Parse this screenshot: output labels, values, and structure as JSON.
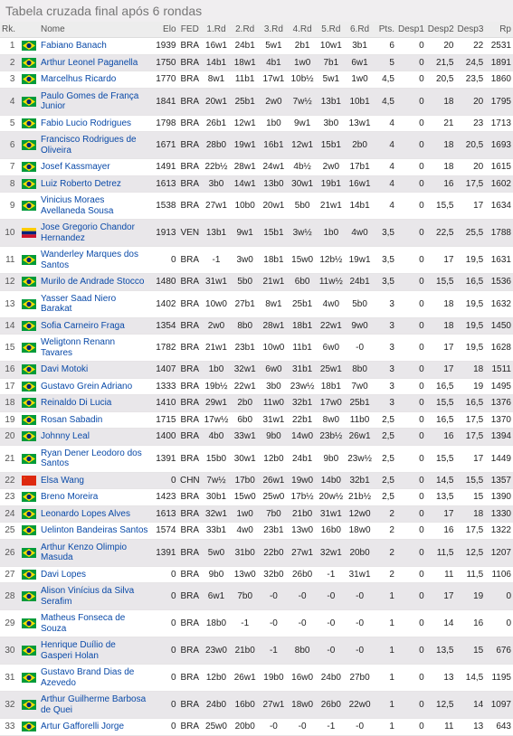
{
  "title": "Tabela cruzada final após 6 rondas",
  "headers": {
    "rk": "Rk.",
    "name": "Nome",
    "elo": "Elo",
    "fed": "FED",
    "r1": "1.Rd",
    "r2": "2.Rd",
    "r3": "3.Rd",
    "r4": "4.Rd",
    "r5": "5.Rd",
    "r6": "6.Rd",
    "pts": "Pts.",
    "d1": "Desp1",
    "d2": "Desp2",
    "d3": "Desp3",
    "rp": "Rp"
  },
  "rows": [
    {
      "rk": 1,
      "flag": "BRA",
      "name": "Fabiano Banach",
      "elo": 1939,
      "fed": "BRA",
      "r": [
        "16w1",
        "24b1",
        "5w1",
        "2b1",
        "10w1",
        "3b1"
      ],
      "pts": "6",
      "d1": 0,
      "d2": "20",
      "d3": "22",
      "rp": 2531
    },
    {
      "rk": 2,
      "flag": "BRA",
      "name": "Arthur Leonel Paganella",
      "elo": 1750,
      "fed": "BRA",
      "r": [
        "14b1",
        "18w1",
        "4b1",
        "1w0",
        "7b1",
        "6w1"
      ],
      "pts": "5",
      "d1": 0,
      "d2": "21,5",
      "d3": "24,5",
      "rp": 1891
    },
    {
      "rk": 3,
      "flag": "BRA",
      "name": "Marcelhus Ricardo",
      "elo": 1770,
      "fed": "BRA",
      "r": [
        "8w1",
        "11b1",
        "17w1",
        "10b½",
        "5w1",
        "1w0"
      ],
      "pts": "4,5",
      "d1": 0,
      "d2": "20,5",
      "d3": "23,5",
      "rp": 1860
    },
    {
      "rk": 4,
      "flag": "BRA",
      "name": "Paulo Gomes de França Junior",
      "elo": 1841,
      "fed": "BRA",
      "r": [
        "20w1",
        "25b1",
        "2w0",
        "7w½",
        "13b1",
        "10b1"
      ],
      "pts": "4,5",
      "d1": 0,
      "d2": "18",
      "d3": "20",
      "rp": 1795
    },
    {
      "rk": 5,
      "flag": "BRA",
      "name": "Fabio Lucio Rodrigues",
      "elo": 1798,
      "fed": "BRA",
      "r": [
        "26b1",
        "12w1",
        "1b0",
        "9w1",
        "3b0",
        "13w1"
      ],
      "pts": "4",
      "d1": 0,
      "d2": "21",
      "d3": "23",
      "rp": 1713
    },
    {
      "rk": 6,
      "flag": "BRA",
      "name": "Francisco Rodrigues de Oliveira",
      "elo": 1671,
      "fed": "BRA",
      "r": [
        "28b0",
        "19w1",
        "16b1",
        "12w1",
        "15b1",
        "2b0"
      ],
      "pts": "4",
      "d1": 0,
      "d2": "18",
      "d3": "20,5",
      "rp": 1693
    },
    {
      "rk": 7,
      "flag": "BRA",
      "name": "Josef Kassmayer",
      "elo": 1491,
      "fed": "BRA",
      "r": [
        "22b½",
        "28w1",
        "24w1",
        "4b½",
        "2w0",
        "17b1"
      ],
      "pts": "4",
      "d1": 0,
      "d2": "18",
      "d3": "20",
      "rp": 1615
    },
    {
      "rk": 8,
      "flag": "BRA",
      "name": "Luiz Roberto Detrez",
      "elo": 1613,
      "fed": "BRA",
      "r": [
        "3b0",
        "14w1",
        "13b0",
        "30w1",
        "19b1",
        "16w1"
      ],
      "pts": "4",
      "d1": 0,
      "d2": "16",
      "d3": "17,5",
      "rp": 1602
    },
    {
      "rk": 9,
      "flag": "BRA",
      "name": "Vinicius Moraes Avellaneda Sousa",
      "elo": 1538,
      "fed": "BRA",
      "r": [
        "27w1",
        "10b0",
        "20w1",
        "5b0",
        "21w1",
        "14b1"
      ],
      "pts": "4",
      "d1": 0,
      "d2": "15,5",
      "d3": "17",
      "rp": 1634
    },
    {
      "rk": 10,
      "flag": "VEN",
      "name": "Jose Gregorio Chandor Hernandez",
      "elo": 1913,
      "fed": "VEN",
      "r": [
        "13b1",
        "9w1",
        "15b1",
        "3w½",
        "1b0",
        "4w0"
      ],
      "pts": "3,5",
      "d1": 0,
      "d2": "22,5",
      "d3": "25,5",
      "rp": 1788
    },
    {
      "rk": 11,
      "flag": "BRA",
      "name": "Wanderley Marques dos Santos",
      "elo": 0,
      "fed": "BRA",
      "r": [
        "-1",
        "3w0",
        "18b1",
        "15w0",
        "12b½",
        "19w1"
      ],
      "pts": "3,5",
      "d1": 0,
      "d2": "17",
      "d3": "19,5",
      "rp": 1631
    },
    {
      "rk": 12,
      "flag": "BRA",
      "name": "Murilo de Andrade Stocco",
      "elo": 1480,
      "fed": "BRA",
      "r": [
        "31w1",
        "5b0",
        "21w1",
        "6b0",
        "11w½",
        "24b1"
      ],
      "pts": "3,5",
      "d1": 0,
      "d2": "15,5",
      "d3": "16,5",
      "rp": 1536
    },
    {
      "rk": 13,
      "flag": "BRA",
      "name": "Yasser Saad Niero Barakat",
      "elo": 1402,
      "fed": "BRA",
      "r": [
        "10w0",
        "27b1",
        "8w1",
        "25b1",
        "4w0",
        "5b0"
      ],
      "pts": "3",
      "d1": 0,
      "d2": "18",
      "d3": "19,5",
      "rp": 1632
    },
    {
      "rk": 14,
      "flag": "BRA",
      "name": "Sofia Carneiro Fraga",
      "elo": 1354,
      "fed": "BRA",
      "r": [
        "2w0",
        "8b0",
        "28w1",
        "18b1",
        "22w1",
        "9w0"
      ],
      "pts": "3",
      "d1": 0,
      "d2": "18",
      "d3": "19,5",
      "rp": 1450
    },
    {
      "rk": 15,
      "flag": "BRA",
      "name": "Weligtonn Renann Tavares",
      "elo": 1782,
      "fed": "BRA",
      "r": [
        "21w1",
        "23b1",
        "10w0",
        "11b1",
        "6w0",
        "-0"
      ],
      "pts": "3",
      "d1": 0,
      "d2": "17",
      "d3": "19,5",
      "rp": 1628
    },
    {
      "rk": 16,
      "flag": "BRA",
      "name": "Davi Motoki",
      "elo": 1407,
      "fed": "BRA",
      "r": [
        "1b0",
        "32w1",
        "6w0",
        "31b1",
        "25w1",
        "8b0"
      ],
      "pts": "3",
      "d1": 0,
      "d2": "17",
      "d3": "18",
      "rp": 1511
    },
    {
      "rk": 17,
      "flag": "BRA",
      "name": "Gustavo Grein Adriano",
      "elo": 1333,
      "fed": "BRA",
      "r": [
        "19b½",
        "22w1",
        "3b0",
        "23w½",
        "18b1",
        "7w0"
      ],
      "pts": "3",
      "d1": 0,
      "d2": "16,5",
      "d3": "19",
      "rp": 1495
    },
    {
      "rk": 18,
      "flag": "BRA",
      "name": "Reinaldo Di Lucia",
      "elo": 1410,
      "fed": "BRA",
      "r": [
        "29w1",
        "2b0",
        "11w0",
        "32b1",
        "17w0",
        "25b1"
      ],
      "pts": "3",
      "d1": 0,
      "d2": "15,5",
      "d3": "16,5",
      "rp": 1376
    },
    {
      "rk": 19,
      "flag": "BRA",
      "name": "Rosan Sabadin",
      "elo": 1715,
      "fed": "BRA",
      "r": [
        "17w½",
        "6b0",
        "31w1",
        "22b1",
        "8w0",
        "11b0"
      ],
      "pts": "2,5",
      "d1": 0,
      "d2": "16,5",
      "d3": "17,5",
      "rp": 1370
    },
    {
      "rk": 20,
      "flag": "BRA",
      "name": "Johnny Leal",
      "elo": 1400,
      "fed": "BRA",
      "r": [
        "4b0",
        "33w1",
        "9b0",
        "14w0",
        "23b½",
        "26w1"
      ],
      "pts": "2,5",
      "d1": 0,
      "d2": "16",
      "d3": "17,5",
      "rp": 1394
    },
    {
      "rk": 21,
      "flag": "BRA",
      "name": "Ryan Dener Leodoro dos Santos",
      "elo": 1391,
      "fed": "BRA",
      "r": [
        "15b0",
        "30w1",
        "12b0",
        "24b1",
        "9b0",
        "23w½"
      ],
      "pts": "2,5",
      "d1": 0,
      "d2": "15,5",
      "d3": "17",
      "rp": 1449
    },
    {
      "rk": 22,
      "flag": "CHN",
      "name": "Elsa Wang",
      "elo": 0,
      "fed": "CHN",
      "r": [
        "7w½",
        "17b0",
        "26w1",
        "19w0",
        "14b0",
        "32b1"
      ],
      "pts": "2,5",
      "d1": 0,
      "d2": "14,5",
      "d3": "15,5",
      "rp": 1357
    },
    {
      "rk": 23,
      "flag": "BRA",
      "name": "Breno Moreira",
      "elo": 1423,
      "fed": "BRA",
      "r": [
        "30b1",
        "15w0",
        "25w0",
        "17b½",
        "20w½",
        "21b½"
      ],
      "pts": "2,5",
      "d1": 0,
      "d2": "13,5",
      "d3": "15",
      "rp": 1390
    },
    {
      "rk": 24,
      "flag": "BRA",
      "name": "Leonardo Lopes Alves",
      "elo": 1613,
      "fed": "BRA",
      "r": [
        "32w1",
        "1w0",
        "7b0",
        "21b0",
        "31w1",
        "12w0"
      ],
      "pts": "2",
      "d1": 0,
      "d2": "17",
      "d3": "18",
      "rp": 1330
    },
    {
      "rk": 25,
      "flag": "BRA",
      "name": "Uelinton Bandeiras Santos",
      "elo": 1574,
      "fed": "BRA",
      "r": [
        "33b1",
        "4w0",
        "23b1",
        "13w0",
        "16b0",
        "18w0"
      ],
      "pts": "2",
      "d1": 0,
      "d2": "16",
      "d3": "17,5",
      "rp": 1322
    },
    {
      "rk": 26,
      "flag": "BRA",
      "name": "Arthur Kenzo Olimpio Masuda",
      "elo": 1391,
      "fed": "BRA",
      "r": [
        "5w0",
        "31b0",
        "22b0",
        "27w1",
        "32w1",
        "20b0"
      ],
      "pts": "2",
      "d1": 0,
      "d2": "11,5",
      "d3": "12,5",
      "rp": 1207
    },
    {
      "rk": 27,
      "flag": "BRA",
      "name": "Davi Lopes",
      "elo": 0,
      "fed": "BRA",
      "r": [
        "9b0",
        "13w0",
        "32b0",
        "26b0",
        "-1",
        "31w1"
      ],
      "pts": "2",
      "d1": 0,
      "d2": "11",
      "d3": "11,5",
      "rp": 1106
    },
    {
      "rk": 28,
      "flag": "BRA",
      "name": "Alison Vinícius da Silva Serafim",
      "elo": 0,
      "fed": "BRA",
      "r": [
        "6w1",
        "7b0",
        "-0",
        "-0",
        "-0",
        "-0"
      ],
      "pts": "1",
      "d1": 0,
      "d2": "17",
      "d3": "19",
      "rp": 0
    },
    {
      "rk": 29,
      "flag": "BRA",
      "name": "Matheus Fonseca de Souza",
      "elo": 0,
      "fed": "BRA",
      "r": [
        "18b0",
        "-1",
        "-0",
        "-0",
        "-0",
        "-0"
      ],
      "pts": "1",
      "d1": 0,
      "d2": "14",
      "d3": "16",
      "rp": 0
    },
    {
      "rk": 30,
      "flag": "BRA",
      "name": "Henrique Duílio de Gasperi Holan",
      "elo": 0,
      "fed": "BRA",
      "r": [
        "23w0",
        "21b0",
        "-1",
        "8b0",
        "-0",
        "-0"
      ],
      "pts": "1",
      "d1": 0,
      "d2": "13,5",
      "d3": "15",
      "rp": 676
    },
    {
      "rk": 31,
      "flag": "BRA",
      "name": "Gustavo Brand Dias de Azevedo",
      "elo": 0,
      "fed": "BRA",
      "r": [
        "12b0",
        "26w1",
        "19b0",
        "16w0",
        "24b0",
        "27b0"
      ],
      "pts": "1",
      "d1": 0,
      "d2": "13",
      "d3": "14,5",
      "rp": 1195
    },
    {
      "rk": 32,
      "flag": "BRA",
      "name": "Arthur Guilherme Barbosa de Quei",
      "elo": 0,
      "fed": "BRA",
      "r": [
        "24b0",
        "16b0",
        "27w1",
        "18w0",
        "26b0",
        "22w0"
      ],
      "pts": "1",
      "d1": 0,
      "d2": "12,5",
      "d3": "14",
      "rp": 1097
    },
    {
      "rk": 33,
      "flag": "BRA",
      "name": "Artur Gafforelli Jorge",
      "elo": 0,
      "fed": "BRA",
      "r": [
        "25w0",
        "20b0",
        "-0",
        "-0",
        "-1",
        "-0"
      ],
      "pts": "1",
      "d1": 0,
      "d2": "11",
      "d3": "13",
      "rp": 643
    }
  ],
  "flag_svg": {
    "BRA": "<svg viewBox='0 0 16 11'><rect width='16' height='11' fill='#009b3a'/><polygon points='8,1 15,5.5 8,10 1,5.5' fill='#fedf00'/><circle cx='8' cy='5.5' r='2.6' fill='#002776'/></svg>",
    "VEN": "<svg viewBox='0 0 16 11'><rect width='16' height='3.67' y='0' fill='#ffcc00'/><rect width='16' height='3.67' y='3.67' fill='#00247d'/><rect width='16' height='3.67' y='7.33' fill='#cf142b'/></svg>",
    "CHN": "<svg viewBox='0 0 16 11'><rect width='16' height='11' fill='#de2910'/><polygon points='3,2 3.5,3.4 2.2,2.55 3.8,2.55 2.5,3.4' fill='#ffde00'/></svg>"
  }
}
